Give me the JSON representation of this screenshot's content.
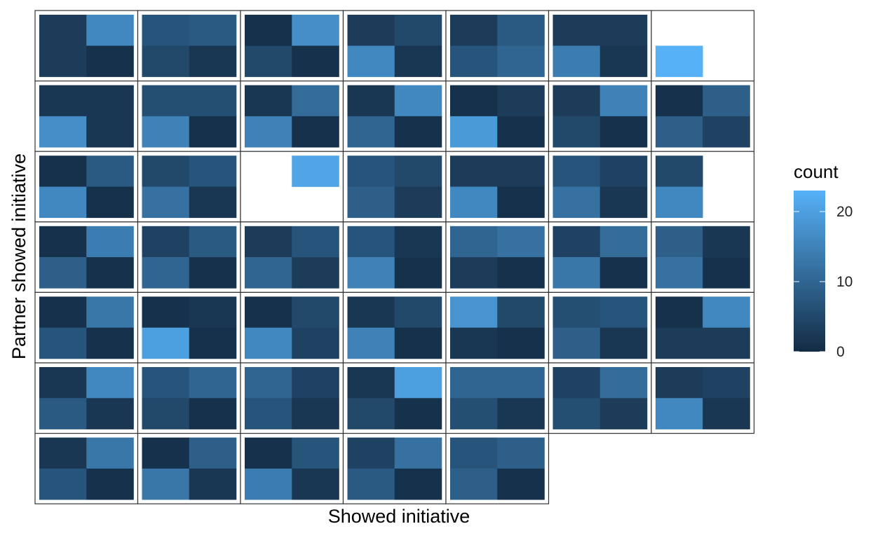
{
  "chart_data": {
    "type": "heatmap",
    "xlabel": "Showed initiative",
    "ylabel": "Partner showed initiative",
    "legend": {
      "title": "count",
      "placement": "right",
      "ticks": [
        0,
        10,
        20
      ],
      "range": [
        0,
        23
      ],
      "color_low": "#132B43",
      "color_high": "#56B1F7"
    },
    "grid": false,
    "facet_rows": 7,
    "facet_cols": 7,
    "cell_layout": "2x2 per panel: [top-left, top-right, bottom-left, bottom-right]; null = empty (white) cell",
    "panels": [
      {
        "row": 1,
        "col": 1,
        "values": [
          3,
          16,
          3,
          1
        ]
      },
      {
        "row": 1,
        "col": 2,
        "values": [
          7,
          8,
          5,
          2
        ]
      },
      {
        "row": 1,
        "col": 3,
        "values": [
          1,
          17,
          5,
          1
        ]
      },
      {
        "row": 1,
        "col": 4,
        "values": [
          3,
          5,
          16,
          2
        ]
      },
      {
        "row": 1,
        "col": 5,
        "values": [
          3,
          8,
          7,
          10
        ]
      },
      {
        "row": 1,
        "col": 6,
        "values": [
          3,
          3,
          14,
          2
        ]
      },
      {
        "row": 1,
        "col": 7,
        "values": [
          null,
          null,
          23,
          null
        ]
      },
      {
        "row": 2,
        "col": 1,
        "values": [
          2,
          2,
          17,
          2
        ]
      },
      {
        "row": 2,
        "col": 2,
        "values": [
          6,
          6,
          15,
          1
        ]
      },
      {
        "row": 2,
        "col": 3,
        "values": [
          2,
          11,
          15,
          1
        ]
      },
      {
        "row": 2,
        "col": 4,
        "values": [
          2,
          16,
          10,
          1
        ]
      },
      {
        "row": 2,
        "col": 5,
        "values": [
          1,
          3,
          19,
          1
        ]
      },
      {
        "row": 2,
        "col": 6,
        "values": [
          3,
          15,
          5,
          1
        ]
      },
      {
        "row": 2,
        "col": 7,
        "values": [
          1,
          9,
          9,
          4
        ]
      },
      {
        "row": 3,
        "col": 1,
        "values": [
          1,
          8,
          16,
          1
        ]
      },
      {
        "row": 3,
        "col": 2,
        "values": [
          5,
          7,
          12,
          2
        ]
      },
      {
        "row": 3,
        "col": 3,
        "values": [
          null,
          21,
          null,
          null
        ]
      },
      {
        "row": 3,
        "col": 4,
        "values": [
          7,
          5,
          9,
          3
        ]
      },
      {
        "row": 3,
        "col": 5,
        "values": [
          3,
          3,
          16,
          1
        ]
      },
      {
        "row": 3,
        "col": 6,
        "values": [
          7,
          4,
          12,
          2
        ]
      },
      {
        "row": 3,
        "col": 7,
        "values": [
          5,
          null,
          16,
          null
        ]
      },
      {
        "row": 4,
        "col": 1,
        "values": [
          1,
          14,
          9,
          1
        ]
      },
      {
        "row": 4,
        "col": 2,
        "values": [
          4,
          8,
          10,
          1
        ]
      },
      {
        "row": 4,
        "col": 3,
        "values": [
          3,
          7,
          10,
          3
        ]
      },
      {
        "row": 4,
        "col": 4,
        "values": [
          7,
          2,
          15,
          1
        ]
      },
      {
        "row": 4,
        "col": 5,
        "values": [
          10,
          12,
          3,
          1
        ]
      },
      {
        "row": 4,
        "col": 6,
        "values": [
          4,
          11,
          13,
          1
        ]
      },
      {
        "row": 4,
        "col": 7,
        "values": [
          9,
          2,
          12,
          1
        ]
      },
      {
        "row": 5,
        "col": 1,
        "values": [
          1,
          13,
          7,
          1
        ]
      },
      {
        "row": 5,
        "col": 2,
        "values": [
          1,
          2,
          20,
          1
        ]
      },
      {
        "row": 5,
        "col": 3,
        "values": [
          1,
          5,
          16,
          4
        ]
      },
      {
        "row": 5,
        "col": 4,
        "values": [
          2,
          5,
          15,
          1
        ]
      },
      {
        "row": 5,
        "col": 5,
        "values": [
          18,
          5,
          2,
          1
        ]
      },
      {
        "row": 5,
        "col": 6,
        "values": [
          6,
          7,
          9,
          2
        ]
      },
      {
        "row": 5,
        "col": 7,
        "values": [
          1,
          16,
          3,
          3
        ]
      },
      {
        "row": 6,
        "col": 1,
        "values": [
          2,
          16,
          8,
          2
        ]
      },
      {
        "row": 6,
        "col": 2,
        "values": [
          7,
          10,
          5,
          1
        ]
      },
      {
        "row": 6,
        "col": 3,
        "values": [
          10,
          4,
          7,
          2
        ]
      },
      {
        "row": 6,
        "col": 4,
        "values": [
          2,
          20,
          5,
          1
        ]
      },
      {
        "row": 6,
        "col": 5,
        "values": [
          10,
          10,
          6,
          2
        ]
      },
      {
        "row": 6,
        "col": 6,
        "values": [
          4,
          11,
          6,
          3
        ]
      },
      {
        "row": 6,
        "col": 7,
        "values": [
          3,
          4,
          16,
          2
        ]
      },
      {
        "row": 7,
        "col": 1,
        "values": [
          2,
          13,
          7,
          1
        ]
      },
      {
        "row": 7,
        "col": 2,
        "values": [
          1,
          9,
          13,
          2
        ]
      },
      {
        "row": 7,
        "col": 3,
        "values": [
          1,
          7,
          14,
          2
        ]
      },
      {
        "row": 7,
        "col": 4,
        "values": [
          4,
          12,
          8,
          1
        ]
      },
      {
        "row": 7,
        "col": 5,
        "values": [
          7,
          9,
          9,
          1
        ]
      }
    ]
  }
}
